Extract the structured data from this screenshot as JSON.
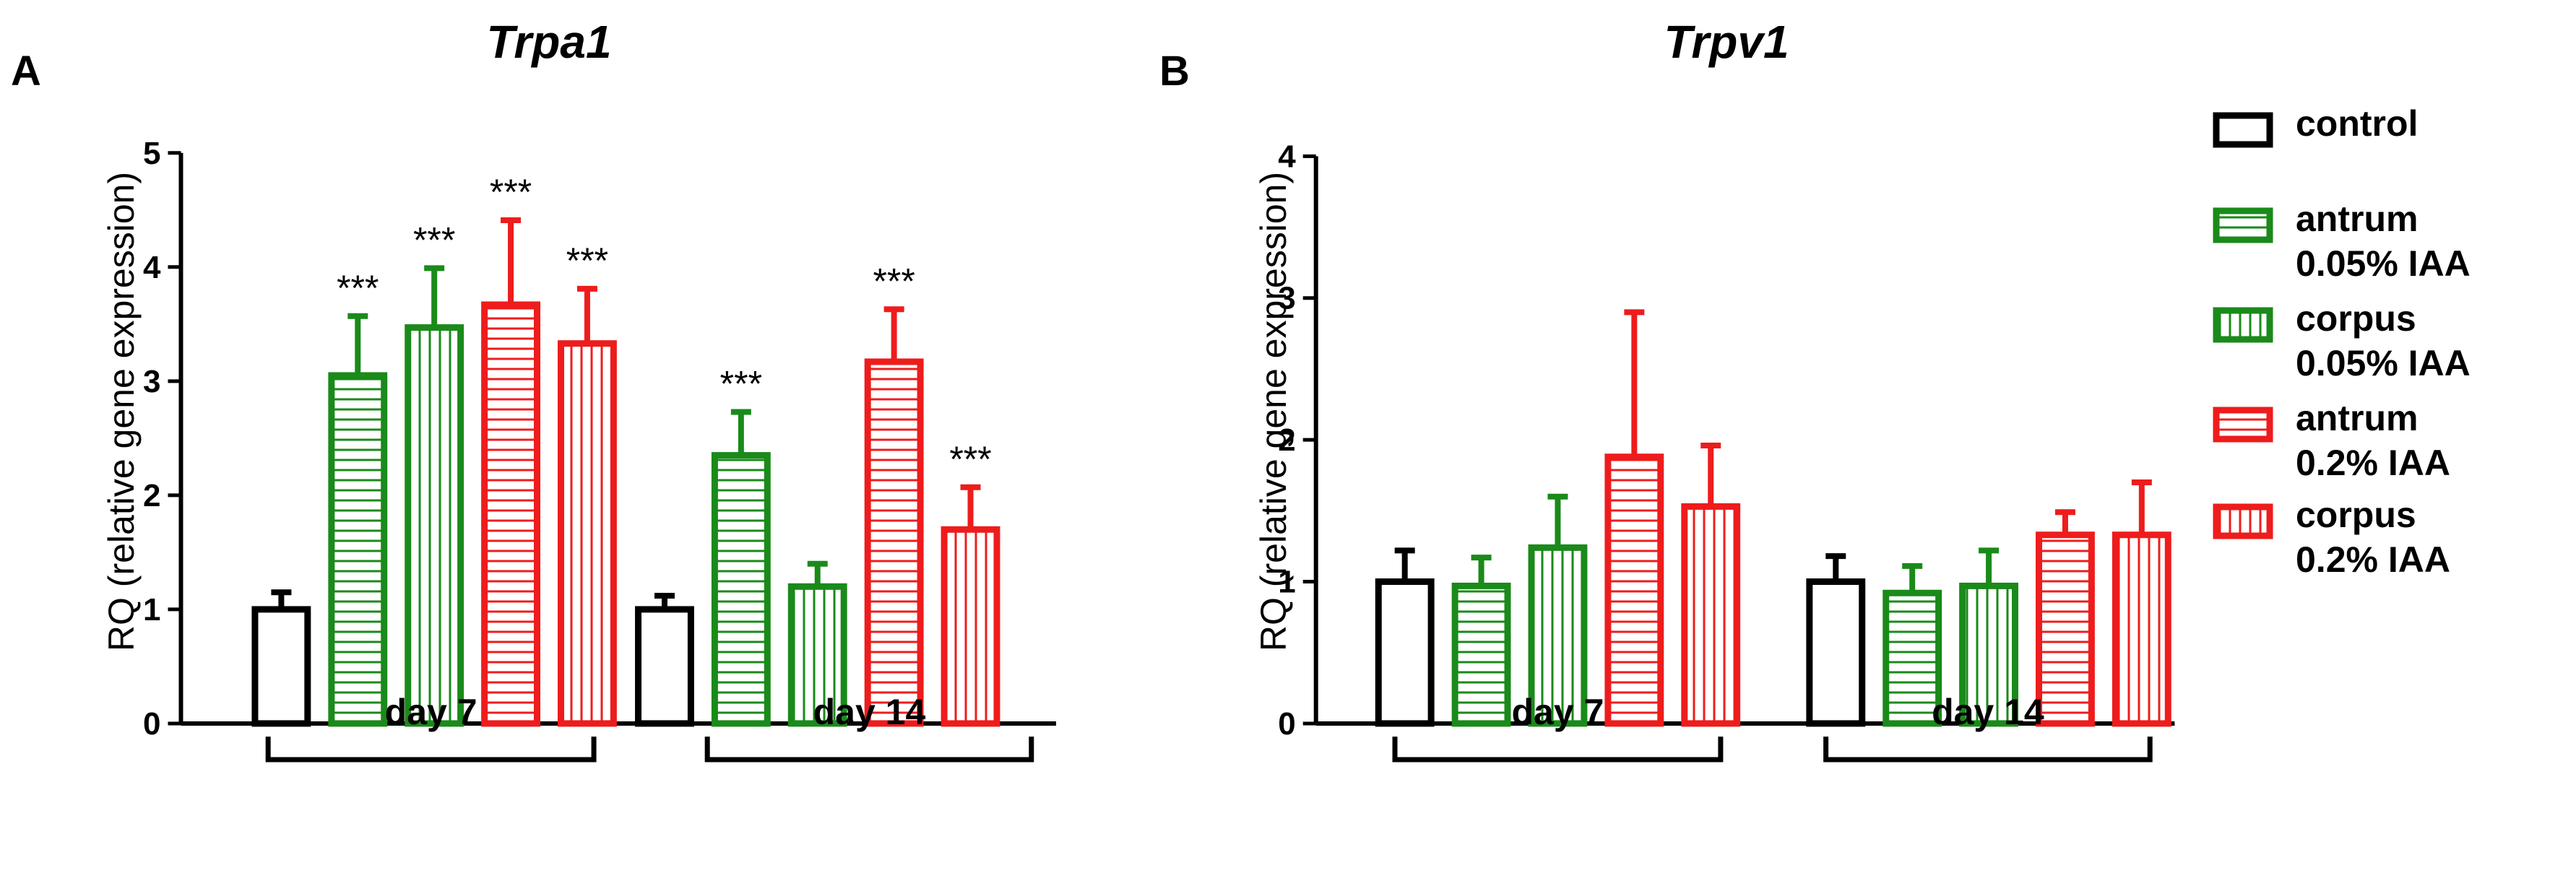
{
  "colors": {
    "control": "#000000",
    "iaa_005": "#1a8a1a",
    "iaa_02": "#ee1c1c"
  },
  "legend": [
    {
      "key": "control",
      "lines": [
        "control"
      ],
      "fill": "none",
      "color": "#000000"
    },
    {
      "key": "antrum_005",
      "lines": [
        "antrum",
        "0.05% IAA"
      ],
      "fill": "horizontal",
      "color": "#1a8a1a"
    },
    {
      "key": "corpus_005",
      "lines": [
        "corpus",
        "0.05% IAA"
      ],
      "fill": "vertical",
      "color": "#1a8a1a"
    },
    {
      "key": "antrum_02",
      "lines": [
        "antrum",
        "0.2% IAA"
      ],
      "fill": "horizontal",
      "color": "#ee1c1c"
    },
    {
      "key": "corpus_02",
      "lines": [
        "corpus",
        "0.2% IAA"
      ],
      "fill": "vertical",
      "color": "#ee1c1c"
    }
  ],
  "chart_data": [
    {
      "panel": "A",
      "type": "bar",
      "title": "Trpa1",
      "ylabel": "RQ (relative gene expression)",
      "ylim": [
        0,
        5
      ],
      "yticks": [
        0,
        1,
        2,
        3,
        4,
        5
      ],
      "groups": [
        "day 7",
        "day 14"
      ],
      "series": [
        {
          "name": "control",
          "values": [
            1.0,
            1.0
          ],
          "errors": [
            0.15,
            0.12
          ],
          "sig": [
            "",
            ""
          ]
        },
        {
          "name": "antrum 0.05% IAA",
          "values": [
            3.05,
            2.35
          ],
          "errors": [
            0.52,
            0.38
          ],
          "sig": [
            "***",
            "***"
          ]
        },
        {
          "name": "corpus 0.05% IAA",
          "values": [
            3.47,
            1.2
          ],
          "errors": [
            0.52,
            0.2
          ],
          "sig": [
            "***",
            ""
          ]
        },
        {
          "name": "antrum 0.2% IAA",
          "values": [
            3.67,
            3.17
          ],
          "errors": [
            0.74,
            0.46
          ],
          "sig": [
            "***",
            "***"
          ]
        },
        {
          "name": "corpus 0.2% IAA",
          "values": [
            3.33,
            1.7
          ],
          "errors": [
            0.48,
            0.37
          ],
          "sig": [
            "***",
            "***"
          ]
        }
      ]
    },
    {
      "panel": "B",
      "type": "bar",
      "title": "Trpv1",
      "ylabel": "RQ (relative gene expression)",
      "ylim": [
        0,
        4
      ],
      "yticks": [
        0,
        1,
        2,
        3,
        4
      ],
      "groups": [
        "day 7",
        "day 14"
      ],
      "series": [
        {
          "name": "control",
          "values": [
            1.0,
            1.0
          ],
          "errors": [
            0.22,
            0.18
          ],
          "sig": [
            "",
            ""
          ]
        },
        {
          "name": "antrum 0.05% IAA",
          "values": [
            0.97,
            0.92
          ],
          "errors": [
            0.2,
            0.19
          ],
          "sig": [
            "",
            ""
          ]
        },
        {
          "name": "corpus 0.05% IAA",
          "values": [
            1.24,
            0.97
          ],
          "errors": [
            0.36,
            0.25
          ],
          "sig": [
            "",
            ""
          ]
        },
        {
          "name": "antrum 0.2% IAA",
          "values": [
            1.88,
            1.33
          ],
          "errors": [
            1.02,
            0.16
          ],
          "sig": [
            "",
            ""
          ]
        },
        {
          "name": "corpus 0.2% IAA",
          "values": [
            1.53,
            1.33
          ],
          "errors": [
            0.43,
            0.37
          ],
          "sig": [
            "",
            ""
          ]
        }
      ]
    }
  ]
}
